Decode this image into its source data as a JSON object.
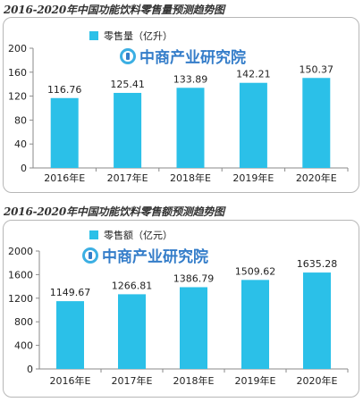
{
  "colors": {
    "bar": "#2bc0e8",
    "brand_blue": "#1f6fc4",
    "brand_cyan": "#27a7e0",
    "axis": "#8a8a8a",
    "grid": "#e5e5e5",
    "title_text": "#333333"
  },
  "chart_data": [
    {
      "type": "bar",
      "title": "2016-2020年中国功能饮料零售量预测趋势图",
      "legend": "零售量（亿升）",
      "legend_position": "top-left",
      "watermark": "中商产业研究院",
      "categories": [
        "2016年E",
        "2017年E",
        "2018年E",
        "2019年E",
        "2020年E"
      ],
      "values": [
        116.76,
        125.41,
        133.89,
        142.21,
        150.37
      ],
      "value_labels": [
        "116.76",
        "125.41",
        "133.89",
        "142.21",
        "150.37"
      ],
      "yticks": [
        "0",
        "40",
        "80",
        "120",
        "160",
        "200"
      ],
      "ylim": [
        0,
        200
      ],
      "grid": false
    },
    {
      "type": "bar",
      "title": "2016-2020年中国功能饮料零售额预测趋势图",
      "legend": "零售额（亿元）",
      "legend_position": "top-left",
      "watermark": "中商产业研究院",
      "categories": [
        "2016年E",
        "2017年E",
        "2018年E",
        "2019年E",
        "2020年E"
      ],
      "values": [
        1149.67,
        1266.81,
        1386.79,
        1509.62,
        1635.28
      ],
      "value_labels": [
        "1149.67",
        "1266.81",
        "1386.79",
        "1509.62",
        "1635.28"
      ],
      "yticks": [
        "0",
        "400",
        "800",
        "1200",
        "1600",
        "2000"
      ],
      "ylim": [
        0,
        2000
      ],
      "grid": false
    }
  ]
}
